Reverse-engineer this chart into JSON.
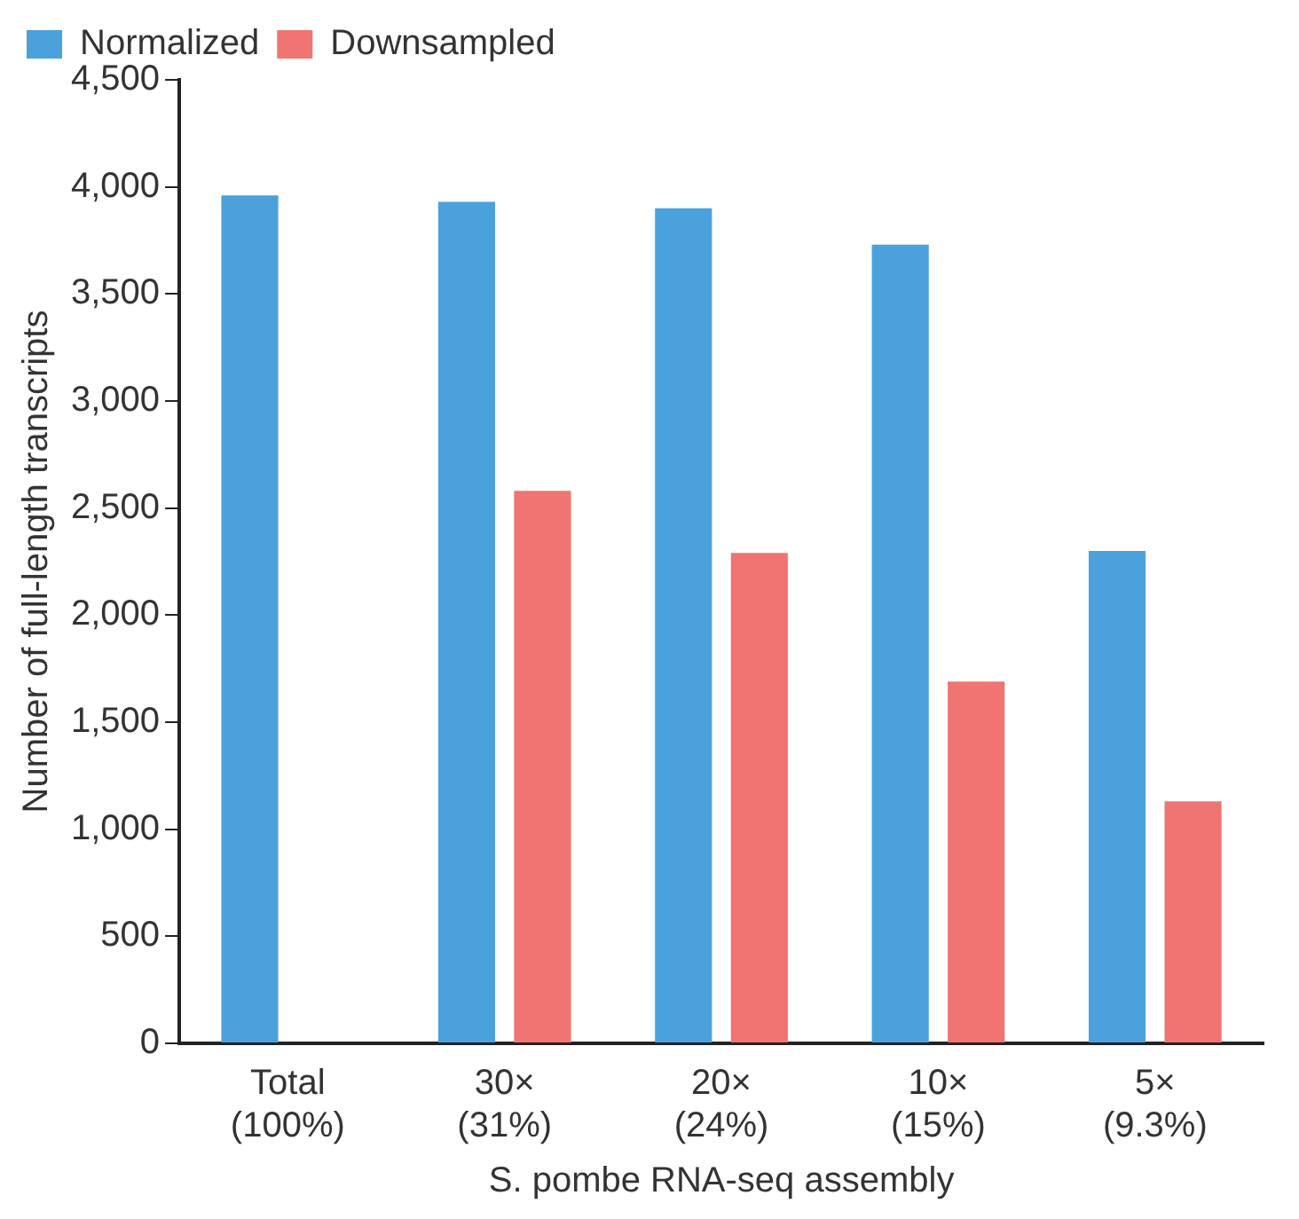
{
  "chart_data": {
    "type": "bar",
    "xlabel": "S. pombe RNA-seq assembly",
    "ylabel": "Number of full-length transcripts",
    "categories": [
      "Total\n(100%)",
      "30×\n(31%)",
      "20×\n(24%)",
      "10×\n(15%)",
      "5×\n(9.3%)"
    ],
    "series": [
      {
        "name": "Normalized",
        "color": "#4aa1dc",
        "values": [
          3960,
          3930,
          3900,
          3730,
          2300
        ]
      },
      {
        "name": "Downsampled",
        "color": "#f07471",
        "values": [
          null,
          2580,
          2290,
          1690,
          1130
        ]
      }
    ],
    "ylim": [
      0,
      4500
    ],
    "yticks": [
      0,
      {
        "value": 500,
        "label": "500"
      },
      {
        "value": 1000,
        "label": "1,000"
      },
      {
        "value": 1500,
        "label": "1,500"
      },
      {
        "value": 2000,
        "label": "2,000"
      },
      {
        "value": 2500,
        "label": "2,500"
      },
      {
        "value": 3000,
        "label": "3,000"
      },
      {
        "value": 3500,
        "label": "3,500"
      },
      {
        "value": 4000,
        "label": "4,000"
      },
      {
        "value": 4500,
        "label": "4,500"
      }
    ],
    "grid": false,
    "legend": "top left"
  }
}
